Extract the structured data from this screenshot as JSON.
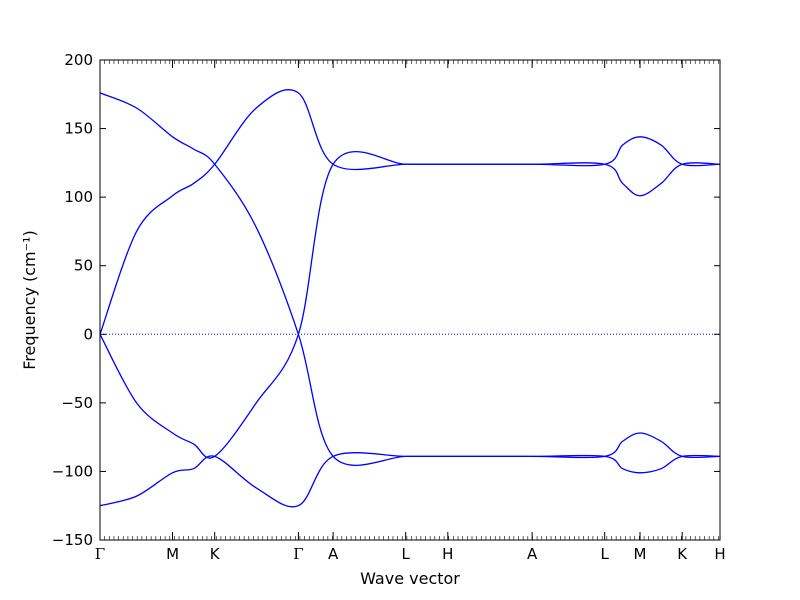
{
  "chart_data": {
    "type": "line",
    "title": "",
    "xlabel": "Wave vector",
    "ylabel": "Frequency (cm⁻¹)",
    "ylim": [
      -150,
      200
    ],
    "yticks": [
      -150,
      -100,
      -50,
      0,
      50,
      100,
      150,
      200
    ],
    "ytick_labels": [
      "−150",
      "−100",
      "−50",
      "0",
      "50",
      "100",
      "150",
      "200"
    ],
    "xlim": [
      0,
      1
    ],
    "high_symmetry_points": [
      {
        "label": "Γ",
        "x": 0.0
      },
      {
        "label": "M",
        "x": 0.117
      },
      {
        "label": "K",
        "x": 0.185
      },
      {
        "label": "Γ",
        "x": 0.32
      },
      {
        "label": "A",
        "x": 0.376
      },
      {
        "label": "L",
        "x": 0.493
      },
      {
        "label": "H",
        "x": 0.561
      },
      {
        "label": "A",
        "x": 0.697
      },
      {
        "label": "L",
        "x": 0.814
      },
      {
        "label": "M",
        "x": 0.871
      },
      {
        "label": "K",
        "x": 0.939
      },
      {
        "label": "H",
        "x": 1.0
      }
    ],
    "zero_line": true,
    "line_color": "#0000ff",
    "series": [
      {
        "values": [
          [
            0.0,
            176
          ],
          [
            0.059,
            165
          ],
          [
            0.117,
            144
          ],
          [
            0.151,
            135
          ],
          [
            0.185,
            124
          ],
          [
            0.252,
            78
          ],
          [
            0.32,
            0
          ],
          [
            0.376,
            -89
          ],
          [
            0.493,
            -89
          ],
          [
            0.561,
            -89
          ],
          [
            0.697,
            -89
          ],
          [
            0.814,
            -89
          ],
          [
            0.843,
            -78
          ],
          [
            0.871,
            -72
          ],
          [
            0.905,
            -78
          ],
          [
            0.939,
            -89
          ],
          [
            1.0,
            -89
          ]
        ]
      },
      {
        "values": [
          [
            0.0,
            0
          ],
          [
            0.059,
            75
          ],
          [
            0.117,
            101
          ],
          [
            0.151,
            110
          ],
          [
            0.185,
            124
          ],
          [
            0.252,
            165
          ],
          [
            0.32,
            176
          ],
          [
            0.376,
            124
          ],
          [
            0.493,
            124
          ],
          [
            0.561,
            124
          ],
          [
            0.697,
            124
          ],
          [
            0.814,
            124
          ],
          [
            0.843,
            138
          ],
          [
            0.871,
            144
          ],
          [
            0.905,
            138
          ],
          [
            0.939,
            124
          ],
          [
            1.0,
            124
          ]
        ]
      },
      {
        "values": [
          [
            0.0,
            0
          ],
          [
            0.059,
            -50
          ],
          [
            0.117,
            -72
          ],
          [
            0.151,
            -80
          ],
          [
            0.185,
            -89
          ],
          [
            0.252,
            -50
          ],
          [
            0.32,
            0
          ],
          [
            0.376,
            124
          ],
          [
            0.493,
            124
          ],
          [
            0.561,
            124
          ],
          [
            0.697,
            124
          ],
          [
            0.814,
            124
          ],
          [
            0.843,
            110
          ],
          [
            0.871,
            101
          ],
          [
            0.905,
            110
          ],
          [
            0.939,
            124
          ],
          [
            1.0,
            124
          ]
        ]
      },
      {
        "values": [
          [
            0.0,
            -125
          ],
          [
            0.059,
            -118
          ],
          [
            0.117,
            -101
          ],
          [
            0.151,
            -98
          ],
          [
            0.185,
            -89
          ],
          [
            0.252,
            -112
          ],
          [
            0.32,
            -125
          ],
          [
            0.376,
            -89
          ],
          [
            0.493,
            -89
          ],
          [
            0.561,
            -89
          ],
          [
            0.697,
            -89
          ],
          [
            0.814,
            -89
          ],
          [
            0.843,
            -98
          ],
          [
            0.871,
            -101
          ],
          [
            0.905,
            -98
          ],
          [
            0.939,
            -89
          ],
          [
            1.0,
            -89
          ]
        ]
      }
    ]
  }
}
